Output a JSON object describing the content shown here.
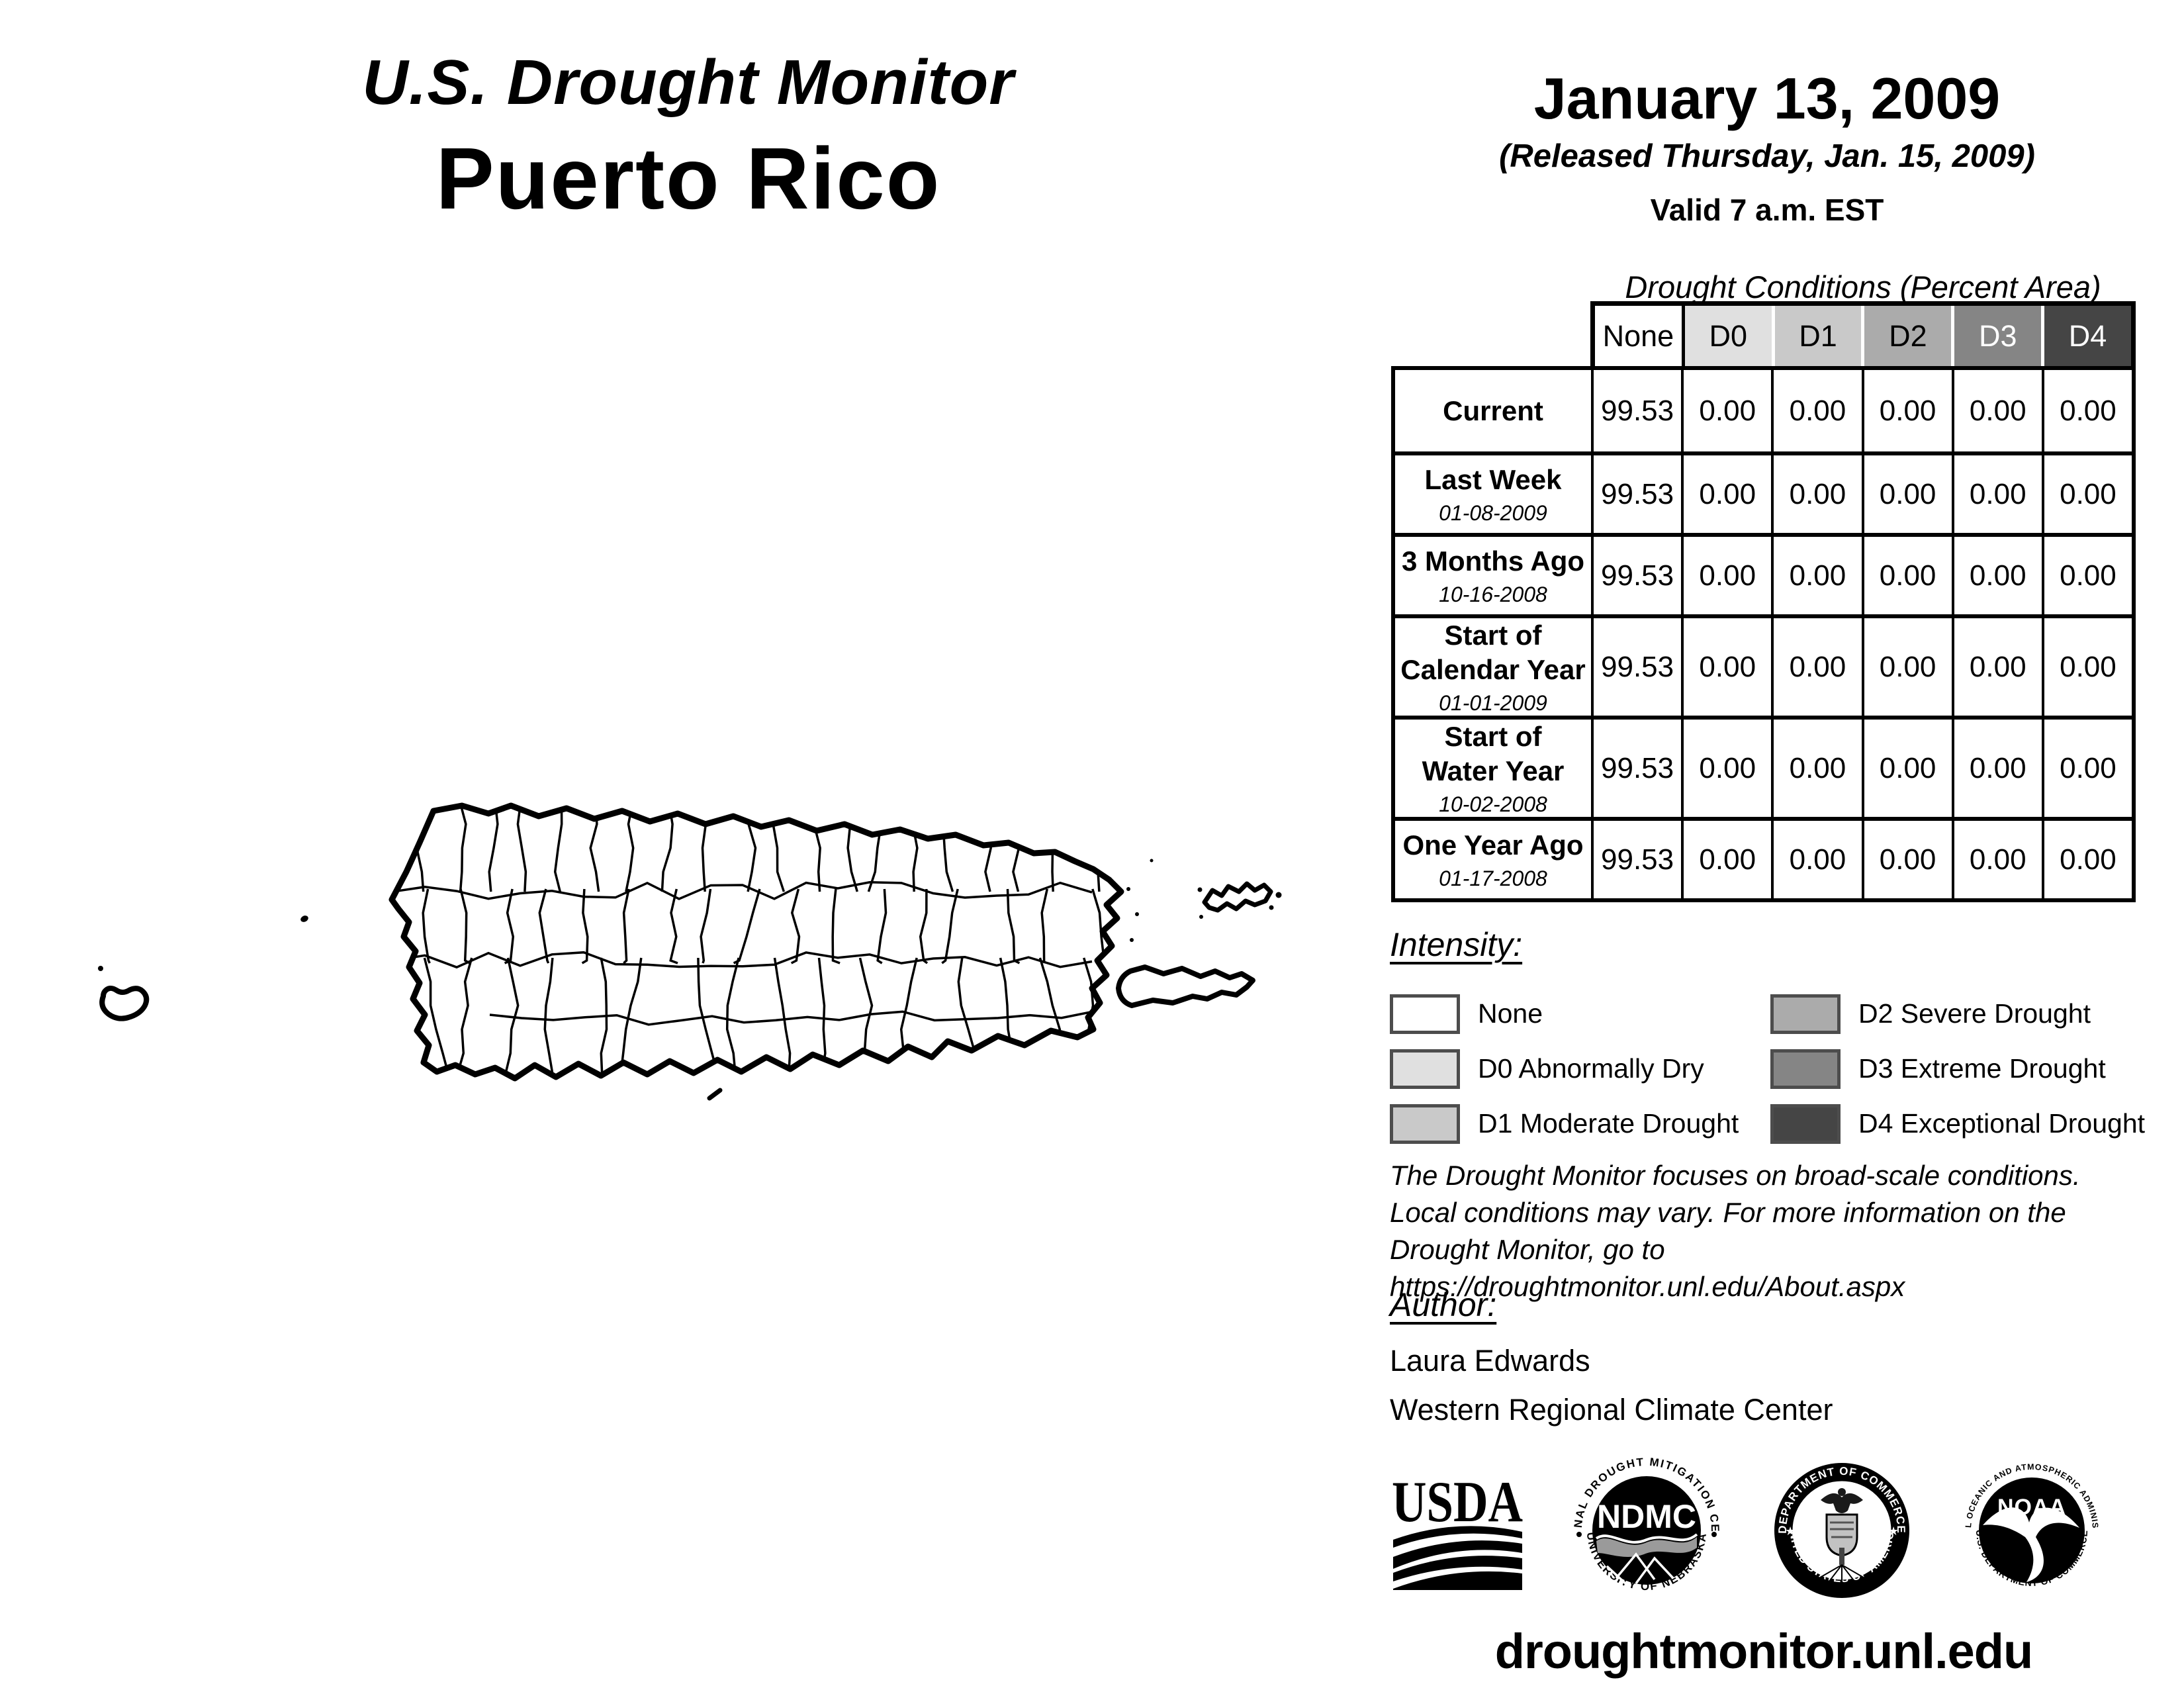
{
  "header": {
    "title_line1": "U.S. Drought Monitor",
    "title_line2": "Puerto Rico"
  },
  "date_block": {
    "date": "January 13, 2009",
    "released": "(Released Thursday, Jan. 15, 2009)",
    "valid": "Valid 7 a.m. EST"
  },
  "table": {
    "title": "Drought Conditions (Percent Area)",
    "columns": [
      {
        "label": "None",
        "bg": "#ffffff",
        "fg": "#000000"
      },
      {
        "label": "D0",
        "bg": "#e0e0e0",
        "fg": "#000000"
      },
      {
        "label": "D1",
        "bg": "#c9c9c9",
        "fg": "#000000"
      },
      {
        "label": "D2",
        "bg": "#ababab",
        "fg": "#000000"
      },
      {
        "label": "D3",
        "bg": "#858585",
        "fg": "#ffffff"
      },
      {
        "label": "D4",
        "bg": "#454545",
        "fg": "#ffffff"
      }
    ],
    "rows": [
      {
        "label": "Current",
        "date": "",
        "values": [
          "99.53",
          "0.00",
          "0.00",
          "0.00",
          "0.00",
          "0.00"
        ]
      },
      {
        "label": "Last Week",
        "date": "01-08-2009",
        "values": [
          "99.53",
          "0.00",
          "0.00",
          "0.00",
          "0.00",
          "0.00"
        ]
      },
      {
        "label": "3 Months Ago",
        "date": "10-16-2008",
        "values": [
          "99.53",
          "0.00",
          "0.00",
          "0.00",
          "0.00",
          "0.00"
        ]
      },
      {
        "label": "Start of\nCalendar Year",
        "date": "01-01-2009",
        "values": [
          "99.53",
          "0.00",
          "0.00",
          "0.00",
          "0.00",
          "0.00"
        ]
      },
      {
        "label": "Start of\nWater Year",
        "date": "10-02-2008",
        "values": [
          "99.53",
          "0.00",
          "0.00",
          "0.00",
          "0.00",
          "0.00"
        ]
      },
      {
        "label": "One Year Ago",
        "date": "01-17-2008",
        "values": [
          "99.53",
          "0.00",
          "0.00",
          "0.00",
          "0.00",
          "0.00"
        ]
      }
    ]
  },
  "legend": {
    "title": "Intensity:",
    "swatch_border": "#4d4d4d",
    "items": [
      {
        "label": "None",
        "color": "#ffffff"
      },
      {
        "label": "D0 Abnormally Dry",
        "color": "#e0e0e0"
      },
      {
        "label": "D1 Moderate Drought",
        "color": "#c9c9c9"
      },
      {
        "label": "D2 Severe Drought",
        "color": "#ababab"
      },
      {
        "label": "D3 Extreme Drought",
        "color": "#858585"
      },
      {
        "label": "D4 Exceptional Drought",
        "color": "#454545"
      }
    ]
  },
  "disclaimer": {
    "lines": [
      "The Drought Monitor focuses on broad-scale conditions.",
      "Local conditions may vary. For more information on the",
      "Drought Monitor, go to https://droughtmonitor.unl.edu/About.aspx"
    ]
  },
  "author": {
    "title": "Author:",
    "name": "Laura Edwards",
    "org": "Western Regional Climate Center"
  },
  "logos": {
    "usda": {
      "text": "USDA"
    },
    "ndmc": {
      "center": "NDMC",
      "arc_top": "NATIONAL DROUGHT MITIGATION CENTER",
      "arc_bottom": "UNIVERSITY OF NEBRASKA"
    },
    "commerce": {
      "arc_top": "DEPARTMENT OF COMMERCE",
      "arc_bottom": "UNITED STATES OF AMERICA"
    },
    "noaa": {
      "center": "NOAA",
      "arc_top": "NATIONAL OCEANIC AND ATMOSPHERIC ADMINISTRATION",
      "arc_bottom": "U.S. DEPARTMENT OF COMMERCE"
    }
  },
  "footer": {
    "url": "droughtmonitor.unl.edu"
  }
}
